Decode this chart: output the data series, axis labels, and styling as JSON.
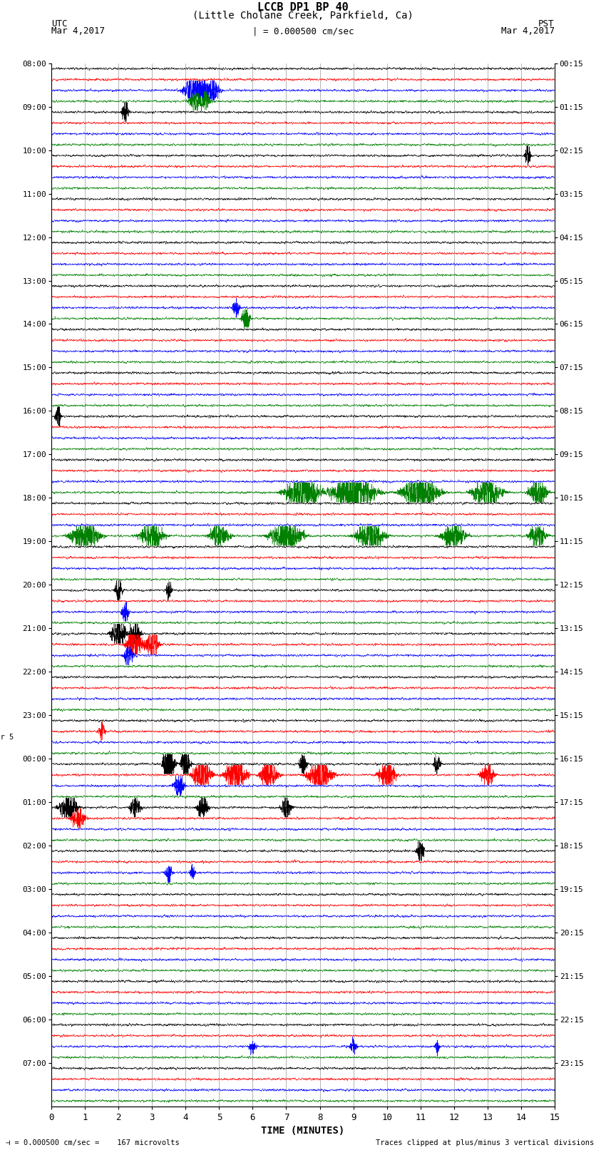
{
  "title_line1": "LCCB DP1 BP 40",
  "title_line2": "(Little Cholane Creek, Parkfield, Ca)",
  "scale_label": "| = 0.000500 cm/sec",
  "scale_value_label": "= 0.000500 cm/sec =    167 microvolts",
  "clip_label": "Traces clipped at plus/minus 3 vertical divisions",
  "utc_label": "UTC",
  "pst_label": "PST",
  "date_left": "Mar 4,2017",
  "date_right": "Mar 4,2017",
  "xlabel": "TIME (MINUTES)",
  "left_times": [
    "08:00",
    "09:00",
    "10:00",
    "11:00",
    "12:00",
    "13:00",
    "14:00",
    "15:00",
    "16:00",
    "17:00",
    "18:00",
    "19:00",
    "20:00",
    "21:00",
    "22:00",
    "23:00",
    "00:00",
    "01:00",
    "02:00",
    "03:00",
    "04:00",
    "05:00",
    "06:00",
    "07:00"
  ],
  "right_times": [
    "00:15",
    "01:15",
    "02:15",
    "03:15",
    "04:15",
    "05:15",
    "06:15",
    "07:15",
    "08:15",
    "09:15",
    "10:15",
    "11:15",
    "12:15",
    "13:15",
    "14:15",
    "15:15",
    "16:15",
    "17:15",
    "18:15",
    "19:15",
    "20:15",
    "21:15",
    "22:15",
    "23:15"
  ],
  "mar5_row": 16,
  "n_rows": 24,
  "n_traces_per_row": 4,
  "colors": [
    "black",
    "red",
    "blue",
    "green"
  ],
  "xlim": [
    0,
    15
  ],
  "xticks": [
    0,
    1,
    2,
    3,
    4,
    5,
    6,
    7,
    8,
    9,
    10,
    11,
    12,
    13,
    14,
    15
  ],
  "background_color": "#ffffff",
  "grid_color": "#aaaaaa",
  "noise_amp": 0.04
}
